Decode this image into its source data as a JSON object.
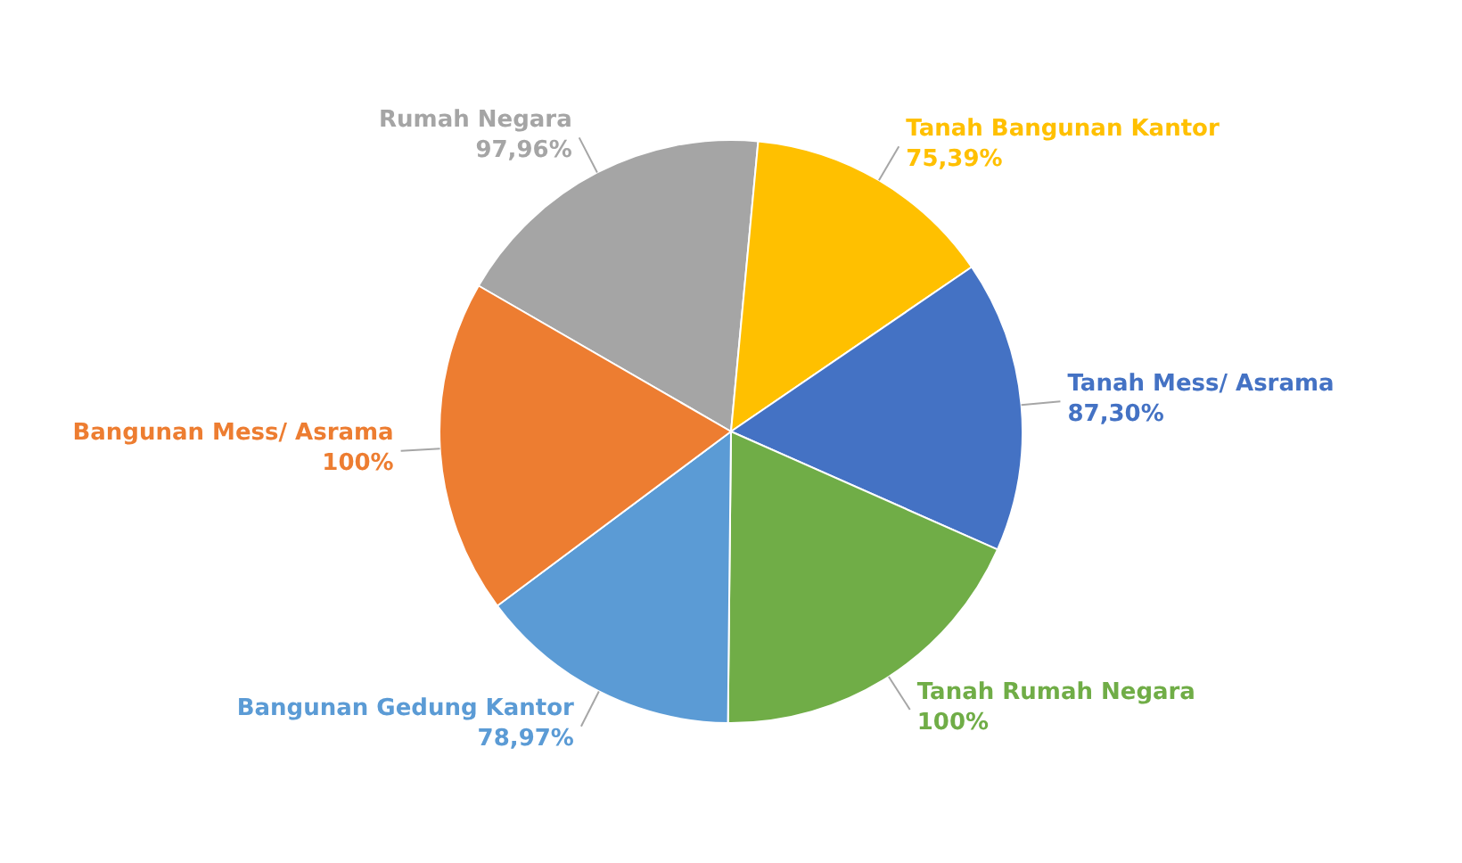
{
  "chart_data": {
    "type": "pie",
    "categories": [
      "Rumah Negara",
      "Tanah Bangunan Kantor",
      "Tanah Mess/ Asrama",
      "Tanah Rumah Negara",
      "Bangunan Gedung Kantor",
      "Bangunan Mess/ Asrama"
    ],
    "values": [
      97.96,
      75.39,
      87.3,
      100,
      78.97,
      100
    ],
    "value_labels": [
      "97,96%",
      "75,39%",
      "87,30%",
      "100%",
      "78,97%",
      "100%"
    ],
    "colors": [
      "#a5a5a5",
      "#ffc000",
      "#4472c4",
      "#70ad47",
      "#5b9bd5",
      "#ed7d31"
    ]
  }
}
